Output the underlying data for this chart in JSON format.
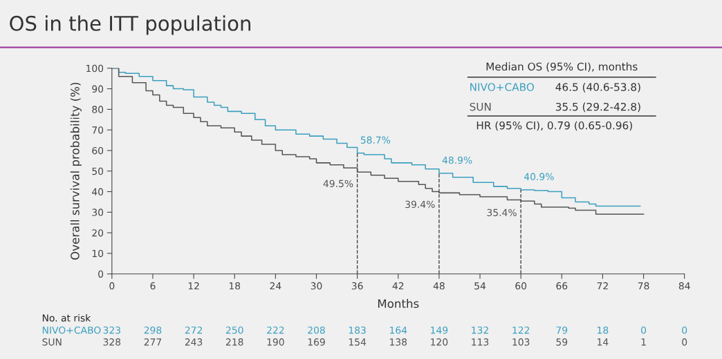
{
  "chart_data": {
    "type": "step",
    "title": "OS in the ITT population",
    "xlabel": "Months",
    "ylabel": "Overall survival probability (%)",
    "xlim": [
      0,
      84
    ],
    "xticks": [
      0,
      6,
      12,
      18,
      24,
      30,
      36,
      42,
      48,
      54,
      60,
      66,
      72,
      78,
      84
    ],
    "ylim": [
      0,
      100
    ],
    "yticks": [
      0,
      10,
      20,
      30,
      40,
      50,
      60,
      70,
      80,
      90,
      100
    ],
    "grid": false,
    "legend": false,
    "marker": "none",
    "line_style": "solid",
    "series": [
      {
        "name": "NIVO+CABO",
        "color": "#3a9fbf",
        "x": [
          0,
          1,
          2,
          4,
          6,
          8,
          9,
          10.5,
          12,
          14,
          15,
          16,
          17,
          19,
          21,
          22.5,
          24,
          27,
          29,
          31,
          33,
          34.5,
          36,
          37,
          40,
          41,
          44,
          46,
          48,
          50,
          53,
          56,
          58,
          60,
          62,
          64,
          66,
          68,
          70,
          71,
          77.5
        ],
        "values": [
          100,
          98,
          97.5,
          96,
          94,
          91.5,
          90,
          89.5,
          86,
          83.5,
          82,
          81,
          79,
          78,
          75,
          72,
          70,
          68,
          67,
          65.5,
          63.5,
          61.5,
          58.7,
          58,
          56,
          54,
          53,
          51,
          48.9,
          47,
          44.5,
          42.5,
          41.5,
          40.9,
          40.5,
          40,
          37,
          35,
          34,
          33,
          33
        ]
      },
      {
        "name": "SUN",
        "color": "#555555",
        "x": [
          0,
          1,
          3,
          5,
          6,
          7,
          8,
          9,
          10.5,
          12,
          13,
          14,
          16,
          18,
          19,
          20.5,
          22,
          24,
          25,
          27,
          29,
          30,
          32,
          34,
          36,
          38,
          40,
          42,
          45,
          46,
          47,
          48,
          51,
          54,
          58,
          60,
          62,
          63,
          67,
          68,
          71,
          78
        ],
        "values": [
          100,
          96,
          93,
          89,
          87,
          84,
          82,
          81,
          78,
          76,
          74,
          72,
          71,
          69,
          67,
          65,
          63,
          60,
          58,
          57,
          56,
          54,
          53,
          51.5,
          49.5,
          48,
          46.5,
          45,
          43.5,
          41.5,
          40,
          39.4,
          38.5,
          37.5,
          36,
          35.4,
          34,
          32.5,
          32,
          31,
          29,
          29
        ]
      }
    ],
    "ref_lines": [
      {
        "axis": "x",
        "value": 36,
        "color": "#444444",
        "line_style": "dashed"
      },
      {
        "axis": "x",
        "value": 48,
        "color": "#444444",
        "line_style": "dashed"
      },
      {
        "axis": "x",
        "value": 60,
        "color": "#444444",
        "line_style": "dashed"
      }
    ],
    "annotations": [
      "Median OS (95% CI), months",
      "46.5 (40.6-53.8)",
      "35.5 (29.2-42.8)",
      "HR (95% CI), 0.79 (0.65-0.96)",
      "No. at risk",
      "323 298 272 250 222 208 183 164 149 132 122 79 18 0 0",
      "328 277 243 218 190 169 154 138 120 113 103 59 14 1 0",
      {
        "text": "58.7%",
        "x": 36,
        "y": 58.7
      },
      {
        "text": "48.9%",
        "x": 48,
        "y": 48.9
      },
      {
        "text": "40.9%",
        "x": 60,
        "y": 40.9
      },
      {
        "text": "49.5%",
        "x": 36,
        "y": 49.5
      },
      {
        "text": "39.4%",
        "x": 48,
        "y": 39.4
      },
      {
        "text": "35.4%",
        "x": 60,
        "y": 35.4
      }
    ]
  }
}
